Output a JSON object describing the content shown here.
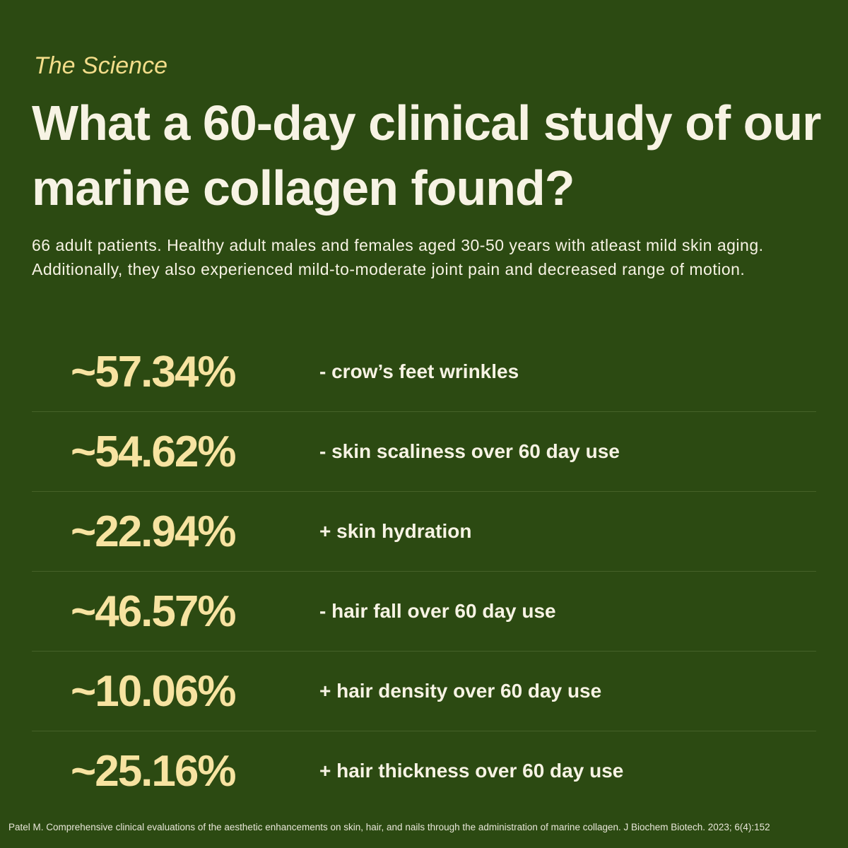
{
  "eyebrow": "The Science",
  "title": "What a 60-day clinical study of our marine collagen found?",
  "intro": "66 adult patients. Healthy adult males and females aged 30-50 years with atleast mild skin aging. Additionally, they also experienced mild-to-moderate joint pain and decreased range of motion.",
  "stats": [
    {
      "value": "~57.34%",
      "label": "- crow’s feet wrinkles"
    },
    {
      "value": "~54.62%",
      "label": "- skin scaliness over 60 day use"
    },
    {
      "value": "~22.94%",
      "label": "+ skin hydration"
    },
    {
      "value": "~46.57%",
      "label": "- hair fall over 60 day use"
    },
    {
      "value": "~10.06%",
      "label": "+ hair density over 60 day use"
    },
    {
      "value": "~25.16%",
      "label": "+ hair thickness over 60 day use"
    }
  ],
  "citation": "Patel M. Comprehensive clinical evaluations of the aesthetic enhancements on skin, hair, and nails through the administration of marine collagen. J Biochem Biotech. 2023; 6(4):152"
}
